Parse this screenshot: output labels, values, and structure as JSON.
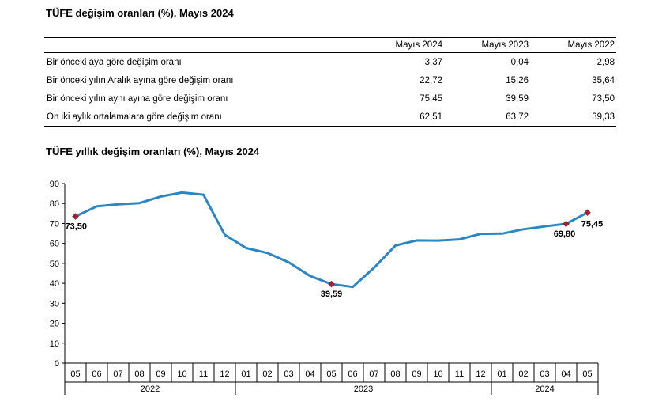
{
  "table": {
    "title": "TÜFE değişim oranları (%), Mayıs 2024",
    "columns": [
      "Mayıs 2024",
      "Mayıs 2023",
      "Mayıs 2022"
    ],
    "rows": [
      {
        "label": "Bir önceki aya göre değişim oranı",
        "values": [
          "3,37",
          "0,04",
          "2,98"
        ]
      },
      {
        "label": "Bir önceki yılın Aralık ayına göre değişim oranı",
        "values": [
          "22,72",
          "15,26",
          "35,64"
        ]
      },
      {
        "label": "Bir önceki yılın aynı ayına göre değişim oranı",
        "values": [
          "75,45",
          "39,59",
          "73,50"
        ]
      },
      {
        "label": "On iki aylık ortalamalara göre değişim oranı",
        "values": [
          "62,51",
          "63,72",
          "39,33"
        ]
      }
    ]
  },
  "chart_data": {
    "type": "line",
    "title": "TÜFE yıllık değişim oranları (%), Mayıs 2024",
    "categories": [
      "05",
      "06",
      "07",
      "08",
      "09",
      "10",
      "11",
      "12",
      "01",
      "02",
      "03",
      "04",
      "05",
      "06",
      "07",
      "08",
      "09",
      "10",
      "11",
      "12",
      "01",
      "02",
      "03",
      "04",
      "05"
    ],
    "year_groups": [
      {
        "label": "2022",
        "count": 8
      },
      {
        "label": "2023",
        "count": 12
      },
      {
        "label": "2024",
        "count": 5
      }
    ],
    "values": [
      73.5,
      78.6,
      79.6,
      80.2,
      83.5,
      85.5,
      84.4,
      64.3,
      57.7,
      55.2,
      50.5,
      43.7,
      39.59,
      38.2,
      47.8,
      58.9,
      61.5,
      61.4,
      62.0,
      64.8,
      64.9,
      67.1,
      68.5,
      69.8,
      75.45
    ],
    "ylim": [
      0,
      90
    ],
    "yticks": [
      0,
      10,
      20,
      30,
      40,
      50,
      60,
      70,
      80,
      90
    ],
    "line_color": "#2e86c1",
    "marker_color": "#9b2335",
    "markers": [
      {
        "index": 0,
        "label": "73,50"
      },
      {
        "index": 12,
        "label": "39,59"
      },
      {
        "index": 23,
        "label": "69,80"
      },
      {
        "index": 24,
        "label": "75,45"
      }
    ],
    "xlabel": "",
    "ylabel": "",
    "grid": false
  }
}
